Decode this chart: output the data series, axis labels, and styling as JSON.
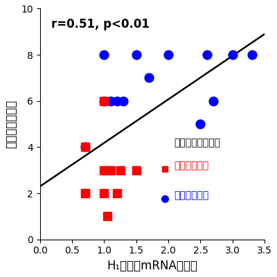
{
  "red_x": [
    0.7,
    0.7,
    0.7,
    1.0,
    1.0,
    1.0,
    1.05,
    1.1,
    1.2,
    1.25,
    1.5
  ],
  "red_y": [
    4,
    2,
    2,
    6,
    3,
    2,
    1,
    3,
    2,
    3,
    3
  ],
  "blue_x": [
    0.7,
    1.0,
    1.0,
    1.1,
    1.2,
    1.3,
    1.5,
    1.7,
    2.0,
    2.5,
    2.6,
    2.7,
    3.0,
    3.3
  ],
  "blue_y": [
    4,
    6,
    8,
    6,
    6,
    6,
    8,
    7,
    8,
    5,
    8,
    6,
    8,
    8
  ],
  "line_x": [
    0.0,
    3.5
  ],
  "line_y": [
    2.3,
    8.9
  ],
  "annotation": "r=0.51, p<0.01",
  "xlabel": "H₁受容体mRNAレベル",
  "ylabel": "鼻炎症状の程度",
  "legend_title": "抗ヒスタミン薬の",
  "legend_red": "初期療法あり",
  "legend_blue": "初期療法なし",
  "xlim": [
    0,
    3.5
  ],
  "ylim": [
    0,
    10
  ],
  "xticks": [
    0,
    0.5,
    1.0,
    1.5,
    2.0,
    2.5,
    3.0,
    3.5
  ],
  "yticks": [
    0,
    2,
    4,
    6,
    8,
    10
  ],
  "red_color": "#ff0000",
  "blue_color": "#0000ff",
  "line_color": "#000000",
  "bg_color": "#ffffff",
  "marker_size_red": 70,
  "marker_size_blue": 85,
  "annotation_fontsize": 12,
  "axis_label_fontsize": 12,
  "tick_fontsize": 10,
  "legend_fontsize": 10,
  "legend_title_fontsize": 10
}
